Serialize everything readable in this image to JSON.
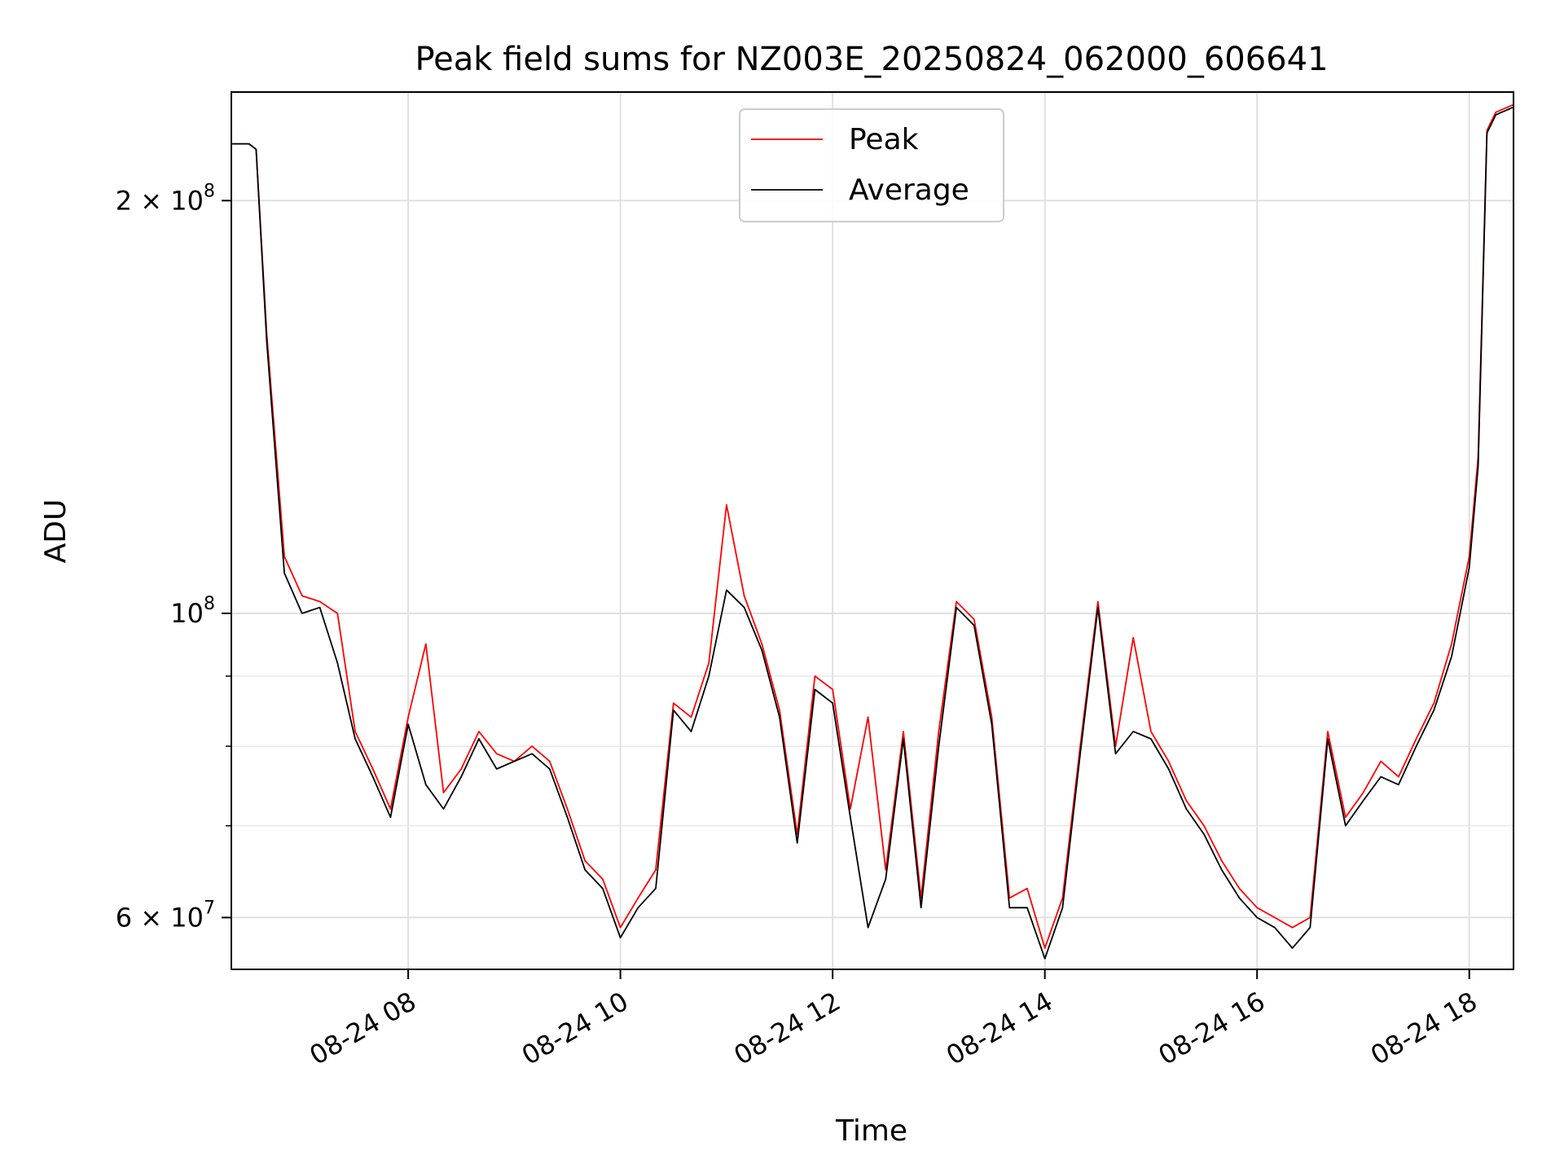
{
  "chart_data": {
    "type": "line",
    "title": "Peak field sums for NZ003E_20250824_062000_606641",
    "xlabel": "Time",
    "ylabel": "ADU",
    "yscale": "log",
    "grid": true,
    "legend_position": "upper-center",
    "xlim": [
      "2025-08-24 06:20",
      "2025-08-24 18:25"
    ],
    "ylim": [
      55000000,
      240000000
    ],
    "x_ticks": [
      {
        "value": "2025-08-24 08:00",
        "label": "08-24 08"
      },
      {
        "value": "2025-08-24 10:00",
        "label": "08-24 10"
      },
      {
        "value": "2025-08-24 12:00",
        "label": "08-24 12"
      },
      {
        "value": "2025-08-24 14:00",
        "label": "08-24 14"
      },
      {
        "value": "2025-08-24 16:00",
        "label": "08-24 16"
      },
      {
        "value": "2025-08-24 18:00",
        "label": "08-24 18"
      }
    ],
    "y_ticks": [
      {
        "value": 60000000,
        "base": "6 × 10",
        "exp": "7"
      },
      {
        "value": 100000000,
        "base": "10",
        "exp": "8"
      },
      {
        "value": 200000000,
        "base": "2 × 10",
        "exp": "8"
      }
    ],
    "y_minor_ticks": [
      70000000,
      80000000,
      90000000
    ],
    "x": [
      "06:20",
      "06:25",
      "06:30",
      "06:34",
      "06:40",
      "06:50",
      "07:00",
      "07:10",
      "07:20",
      "07:30",
      "07:40",
      "07:50",
      "08:00",
      "08:10",
      "08:20",
      "08:30",
      "08:40",
      "08:50",
      "09:00",
      "09:10",
      "09:20",
      "09:30",
      "09:40",
      "09:50",
      "10:00",
      "10:10",
      "10:20",
      "10:30",
      "10:40",
      "10:50",
      "11:00",
      "11:10",
      "11:20",
      "11:30",
      "11:40",
      "11:50",
      "12:00",
      "12:10",
      "12:20",
      "12:30",
      "12:40",
      "12:50",
      "13:00",
      "13:10",
      "13:20",
      "13:30",
      "13:40",
      "13:50",
      "14:00",
      "14:10",
      "14:20",
      "14:30",
      "14:40",
      "14:50",
      "15:00",
      "15:10",
      "15:20",
      "15:30",
      "15:40",
      "15:50",
      "16:00",
      "16:10",
      "16:20",
      "16:30",
      "16:40",
      "16:50",
      "17:00",
      "17:10",
      "17:20",
      "17:30",
      "17:40",
      "17:50",
      "18:00",
      "18:05",
      "18:10",
      "18:15",
      "18:25"
    ],
    "series": [
      {
        "name": "Peak",
        "color": "#ff0000",
        "values": [
          220000000,
          220000000,
          220000000,
          218000000,
          160000000,
          110000000,
          103000000,
          102000000,
          100000000,
          82000000,
          77000000,
          72000000,
          84000000,
          95000000,
          74000000,
          77000000,
          82000000,
          79000000,
          78000000,
          80000000,
          78000000,
          72000000,
          66000000,
          64000000,
          59000000,
          62000000,
          65000000,
          86000000,
          84000000,
          92000000,
          120000000,
          103000000,
          95000000,
          85000000,
          69000000,
          90000000,
          88000000,
          72000000,
          84000000,
          65000000,
          82000000,
          62000000,
          82000000,
          102000000,
          99000000,
          84000000,
          62000000,
          63000000,
          57000000,
          62000000,
          80000000,
          102000000,
          80000000,
          96000000,
          82000000,
          78000000,
          73000000,
          70000000,
          66000000,
          63000000,
          61000000,
          60000000,
          59000000,
          60000000,
          82000000,
          71000000,
          74000000,
          78000000,
          76000000,
          81000000,
          86000000,
          95000000,
          110000000,
          130000000,
          225000000,
          232000000,
          235000000
        ]
      },
      {
        "name": "Average",
        "color": "#000000",
        "values": [
          220000000,
          220000000,
          220000000,
          218000000,
          158000000,
          107000000,
          100000000,
          101000000,
          92000000,
          81000000,
          76000000,
          71000000,
          83000000,
          75000000,
          72000000,
          76000000,
          81000000,
          77000000,
          78000000,
          79000000,
          77000000,
          71000000,
          65000000,
          63000000,
          58000000,
          61000000,
          63000000,
          85000000,
          82000000,
          90000000,
          104000000,
          101000000,
          94000000,
          84000000,
          68000000,
          88000000,
          86000000,
          71000000,
          59000000,
          64000000,
          81000000,
          61000000,
          80000000,
          101000000,
          98000000,
          83000000,
          61000000,
          61000000,
          56000000,
          61000000,
          79000000,
          101000000,
          79000000,
          82000000,
          81000000,
          77000000,
          72000000,
          69000000,
          65000000,
          62000000,
          60000000,
          59000000,
          57000000,
          59000000,
          81000000,
          70000000,
          73000000,
          76000000,
          75000000,
          80000000,
          85000000,
          93000000,
          108000000,
          128000000,
          224000000,
          231000000,
          234000000
        ]
      }
    ]
  }
}
